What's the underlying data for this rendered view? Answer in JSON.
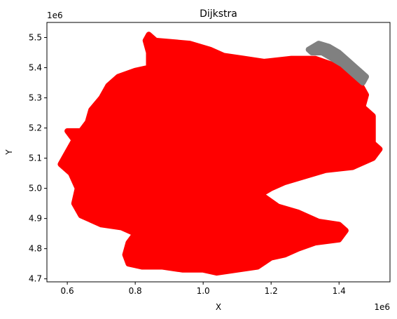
{
  "chart_data": {
    "type": "scatter",
    "title": "Dijkstra",
    "xlabel": "X",
    "ylabel": "Y",
    "x_offset_label": "1e6",
    "y_offset_label": "1e6",
    "xlim": [
      0.54,
      1.55
    ],
    "ylim": [
      4.69,
      5.55
    ],
    "x_ticks": [
      0.6,
      0.8,
      1.0,
      1.2,
      1.4
    ],
    "x_tick_labels": [
      "0.6",
      "0.8",
      "1.0",
      "1.2",
      "1.4"
    ],
    "y_ticks": [
      4.7,
      4.8,
      4.9,
      5.0,
      5.1,
      5.2,
      5.3,
      5.4,
      5.5
    ],
    "y_tick_labels": [
      "4.7",
      "4.8",
      "4.9",
      "5.0",
      "5.1",
      "5.2",
      "5.3",
      "5.4",
      "5.5"
    ],
    "grid": false,
    "legend": "none",
    "series": [
      {
        "color": "#ff0000",
        "outline": [
          [
            0.84,
            5.51
          ],
          [
            0.86,
            5.49
          ],
          [
            0.96,
            5.48
          ],
          [
            1.02,
            5.46
          ],
          [
            1.06,
            5.44
          ],
          [
            1.12,
            5.43
          ],
          [
            1.18,
            5.42
          ],
          [
            1.26,
            5.43
          ],
          [
            1.33,
            5.43
          ],
          [
            1.38,
            5.41
          ],
          [
            1.43,
            5.38
          ],
          [
            1.46,
            5.35
          ],
          [
            1.48,
            5.31
          ],
          [
            1.47,
            5.27
          ],
          [
            1.5,
            5.24
          ],
          [
            1.5,
            5.18
          ],
          [
            1.5,
            5.15
          ],
          [
            1.52,
            5.13
          ],
          [
            1.5,
            5.1
          ],
          [
            1.44,
            5.07
          ],
          [
            1.36,
            5.06
          ],
          [
            1.3,
            5.04
          ],
          [
            1.24,
            5.02
          ],
          [
            1.2,
            5.0
          ],
          [
            1.17,
            4.98
          ],
          [
            1.22,
            4.94
          ],
          [
            1.28,
            4.92
          ],
          [
            1.34,
            4.89
          ],
          [
            1.4,
            4.88
          ],
          [
            1.42,
            4.86
          ],
          [
            1.4,
            4.83
          ],
          [
            1.33,
            4.82
          ],
          [
            1.28,
            4.8
          ],
          [
            1.24,
            4.78
          ],
          [
            1.2,
            4.77
          ],
          [
            1.16,
            4.74
          ],
          [
            1.1,
            4.73
          ],
          [
            1.04,
            4.72
          ],
          [
            1.0,
            4.73
          ],
          [
            0.94,
            4.73
          ],
          [
            0.88,
            4.74
          ],
          [
            0.82,
            4.74
          ],
          [
            0.78,
            4.75
          ],
          [
            0.77,
            4.78
          ],
          [
            0.78,
            4.82
          ],
          [
            0.8,
            4.85
          ],
          [
            0.76,
            4.87
          ],
          [
            0.7,
            4.88
          ],
          [
            0.64,
            4.91
          ],
          [
            0.62,
            4.95
          ],
          [
            0.63,
            5.0
          ],
          [
            0.61,
            5.05
          ],
          [
            0.58,
            5.08
          ],
          [
            0.6,
            5.12
          ],
          [
            0.62,
            5.16
          ],
          [
            0.6,
            5.19
          ],
          [
            0.64,
            5.19
          ],
          [
            0.66,
            5.22
          ],
          [
            0.67,
            5.26
          ],
          [
            0.7,
            5.3
          ],
          [
            0.72,
            5.34
          ],
          [
            0.75,
            5.37
          ],
          [
            0.8,
            5.39
          ],
          [
            0.84,
            5.4
          ],
          [
            0.84,
            5.45
          ],
          [
            0.83,
            5.49
          ]
        ]
      },
      {
        "color": "#808080",
        "outline": [
          [
            1.34,
            5.48
          ],
          [
            1.37,
            5.47
          ],
          [
            1.4,
            5.45
          ],
          [
            1.43,
            5.42
          ],
          [
            1.46,
            5.39
          ],
          [
            1.48,
            5.37
          ],
          [
            1.47,
            5.35
          ],
          [
            1.44,
            5.38
          ],
          [
            1.41,
            5.41
          ],
          [
            1.38,
            5.43
          ],
          [
            1.35,
            5.45
          ],
          [
            1.32,
            5.45
          ],
          [
            1.31,
            5.46
          ]
        ]
      }
    ]
  }
}
